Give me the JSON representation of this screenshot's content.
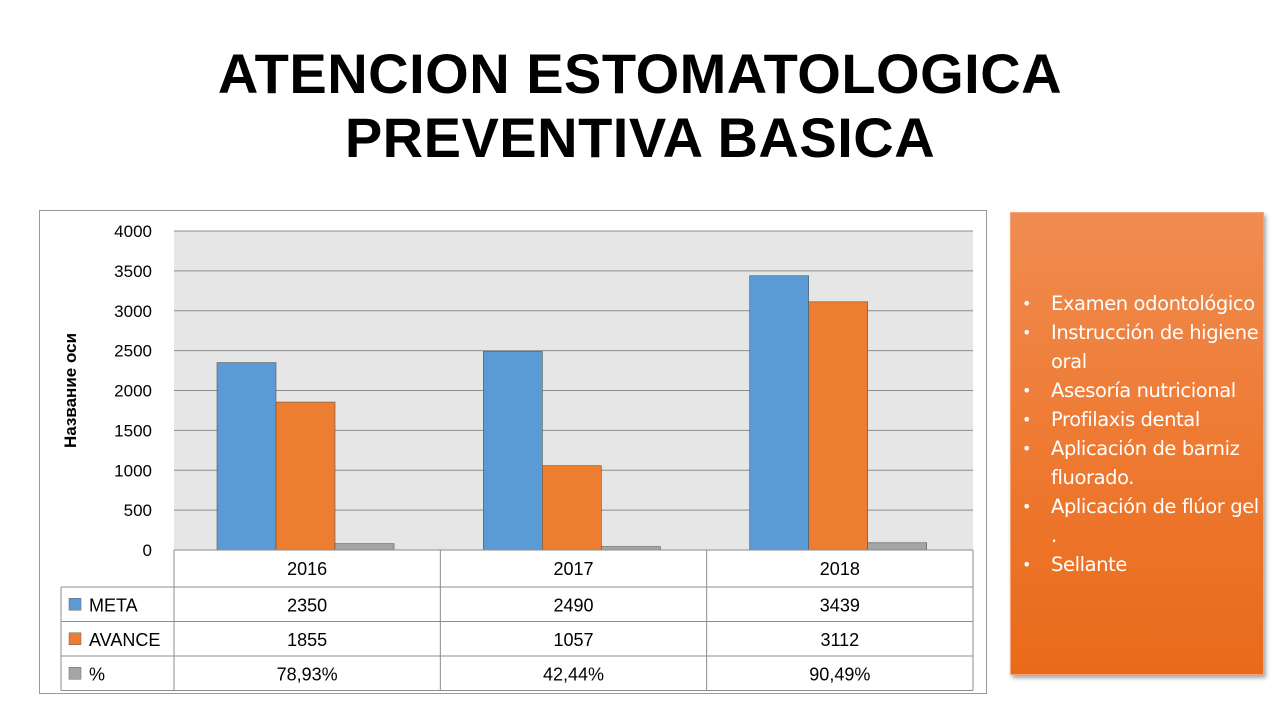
{
  "title_line1": "ATENCION ESTOMATOLOGICA",
  "title_line2": "PREVENTIVA BASICA",
  "chart_data": {
    "type": "bar",
    "categories": [
      "2016",
      "2017",
      "2018"
    ],
    "series": [
      {
        "name": "META",
        "values": [
          2350,
          2490,
          3439
        ],
        "labels": [
          "2350",
          "2490",
          "3439"
        ],
        "color": "#5b9bd5"
      },
      {
        "name": "AVANCE",
        "values": [
          1855,
          1057,
          3112
        ],
        "labels": [
          "1855",
          "1057",
          "3112"
        ],
        "color": "#ed7d31"
      },
      {
        "name": "%",
        "values": [
          78.93,
          42.44,
          90.49
        ],
        "labels": [
          "78,93%",
          "42,44%",
          "90,49%"
        ],
        "color": "#a5a5a5"
      }
    ],
    "ylabel": "Название оси",
    "xlabel": "",
    "ylim": [
      0,
      4000
    ],
    "yticks": [
      0,
      500,
      1000,
      1500,
      2000,
      2500,
      3000,
      3500,
      4000
    ],
    "grid": true,
    "legend": "data-table"
  },
  "side_list": {
    "items": [
      "Examen odontológico",
      "Instrucción de higiene oral",
      "Asesoría nutricional",
      "Profilaxis dental",
      "Aplicación de barniz fluorado.",
      "Aplicación de flúor gel .",
      "Sellante"
    ],
    "bullet": "•"
  }
}
